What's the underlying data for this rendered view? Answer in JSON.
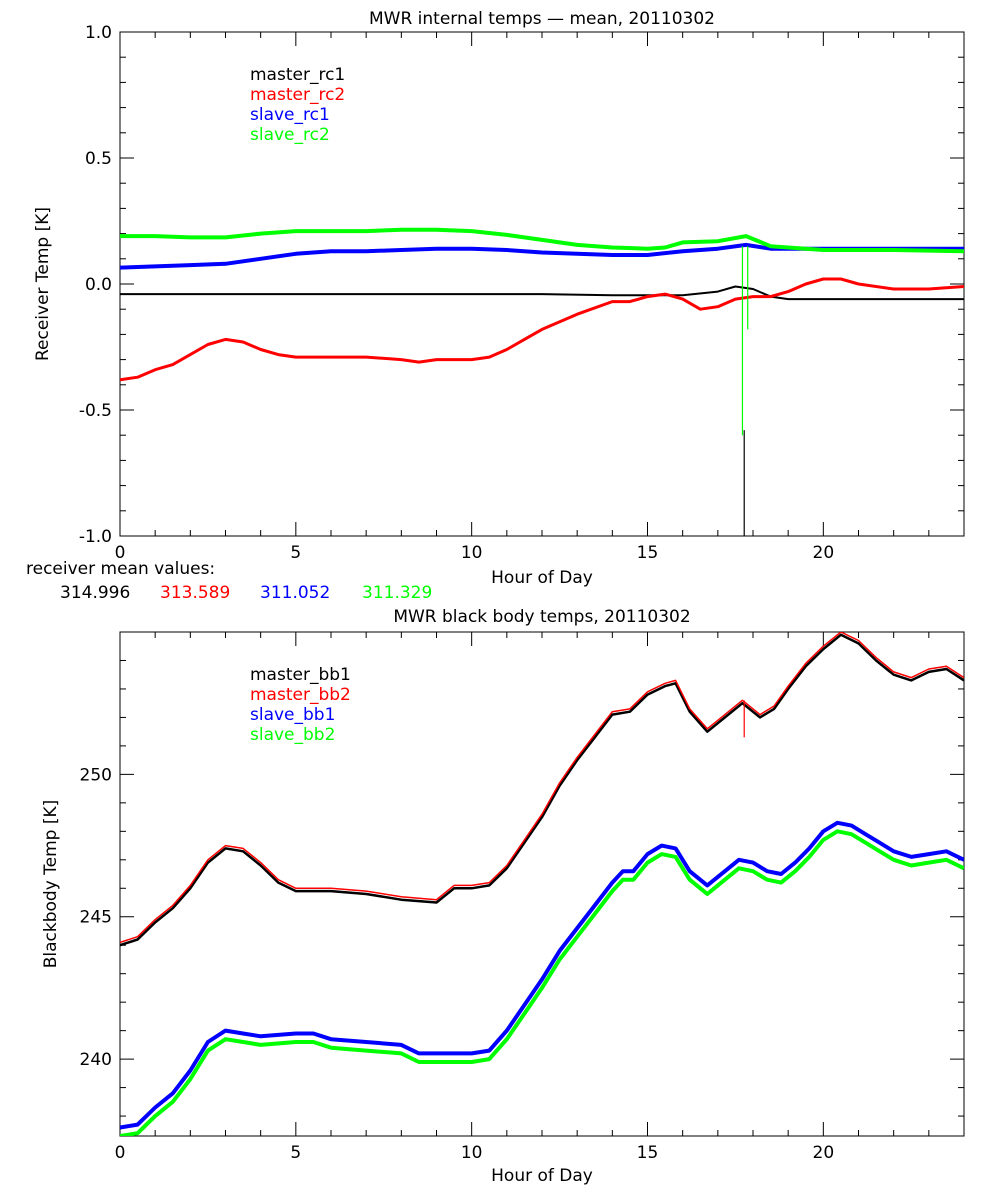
{
  "colors": {
    "black": "#000000",
    "red": "#ff0000",
    "blue": "#0000ff",
    "green": "#00ff00",
    "background": "#ffffff"
  },
  "receiver": {
    "mean_label": "receiver mean values:",
    "means": [
      {
        "text": "314.996",
        "color": "#000000"
      },
      {
        "text": "313.589",
        "color": "#ff0000"
      },
      {
        "text": "311.052",
        "color": "#0000ff"
      },
      {
        "text": "311.329",
        "color": "#00ff00"
      }
    ]
  },
  "chart_data": [
    {
      "type": "line",
      "title": "MWR internal temps — mean, 20110302",
      "xlabel": "Hour of Day",
      "ylabel": "Receiver Temp [K]",
      "xlim": [
        0,
        24
      ],
      "ylim": [
        -1.0,
        1.0
      ],
      "xticks": [
        0,
        5,
        10,
        15,
        20
      ],
      "xtick_labels": [
        "0",
        "5",
        "10",
        "15",
        "20"
      ],
      "yticks": [
        -1.0,
        -0.5,
        0.0,
        0.5,
        1.0
      ],
      "ytick_labels": [
        "-1.0",
        "-0.5",
        "0.0",
        "0.5",
        "1.0"
      ],
      "legend": [
        "master_rc1",
        "master_rc2",
        "slave_rc1",
        "slave_rc2"
      ],
      "series": [
        {
          "name": "master_rc1",
          "color": "#000000",
          "width": 2,
          "x": [
            0,
            2,
            4,
            6,
            8,
            10,
            12,
            14,
            15,
            16,
            17,
            17.5,
            18,
            18.5,
            19,
            20,
            22,
            24
          ],
          "y": [
            -0.04,
            -0.04,
            -0.04,
            -0.04,
            -0.04,
            -0.04,
            -0.04,
            -0.045,
            -0.045,
            -0.045,
            -0.03,
            -0.01,
            -0.02,
            -0.05,
            -0.06,
            -0.06,
            -0.06,
            -0.06
          ]
        },
        {
          "name": "master_rc2",
          "color": "#ff0000",
          "width": 3,
          "x": [
            0,
            0.5,
            1,
            1.5,
            2,
            2.5,
            3,
            3.5,
            4,
            4.5,
            5,
            6,
            7,
            8,
            8.5,
            9,
            10,
            10.5,
            11,
            11.5,
            12,
            13,
            14,
            14.5,
            15,
            15.5,
            16,
            16.5,
            17,
            17.5,
            18,
            18.5,
            19,
            19.5,
            20,
            20.5,
            21,
            22,
            23,
            24
          ],
          "y": [
            -0.38,
            -0.37,
            -0.34,
            -0.32,
            -0.28,
            -0.24,
            -0.22,
            -0.23,
            -0.26,
            -0.28,
            -0.29,
            -0.29,
            -0.29,
            -0.3,
            -0.31,
            -0.3,
            -0.3,
            -0.29,
            -0.26,
            -0.22,
            -0.18,
            -0.12,
            -0.07,
            -0.07,
            -0.05,
            -0.04,
            -0.06,
            -0.1,
            -0.09,
            -0.06,
            -0.05,
            -0.05,
            -0.03,
            0.0,
            0.02,
            0.02,
            0.0,
            -0.02,
            -0.02,
            -0.01
          ]
        },
        {
          "name": "slave_rc1",
          "color": "#0000ff",
          "width": 4,
          "x": [
            0,
            1,
            2,
            3,
            4,
            5,
            6,
            7,
            8,
            9,
            10,
            11,
            12,
            13,
            14,
            15,
            16,
            17,
            17.8,
            18.5,
            19,
            20,
            22,
            24
          ],
          "y": [
            0.065,
            0.07,
            0.075,
            0.08,
            0.1,
            0.12,
            0.13,
            0.13,
            0.135,
            0.14,
            0.14,
            0.135,
            0.125,
            0.12,
            0.115,
            0.115,
            0.13,
            0.14,
            0.155,
            0.14,
            0.14,
            0.14,
            0.14,
            0.14
          ]
        },
        {
          "name": "slave_rc2",
          "color": "#00ff00",
          "width": 4,
          "x": [
            0,
            1,
            2,
            3,
            4,
            5,
            6,
            7,
            8,
            9,
            10,
            11,
            12,
            13,
            14,
            15,
            15.5,
            16,
            17,
            17.8,
            18.5,
            19,
            20,
            21,
            22,
            24
          ],
          "y": [
            0.19,
            0.19,
            0.185,
            0.185,
            0.2,
            0.21,
            0.21,
            0.21,
            0.215,
            0.215,
            0.21,
            0.195,
            0.175,
            0.155,
            0.145,
            0.14,
            0.145,
            0.165,
            0.17,
            0.19,
            0.15,
            0.145,
            0.135,
            0.135,
            0.135,
            0.13
          ]
        }
      ],
      "spikes": [
        {
          "series": "slave_rc2",
          "x": 17.7,
          "y_from": 0.15,
          "y_to": -0.6,
          "color": "#00ff00"
        },
        {
          "series": "slave_rc2",
          "x": 17.85,
          "y_from": 0.15,
          "y_to": -0.18,
          "color": "#00ff00"
        },
        {
          "series": "master_rc1",
          "x": 17.75,
          "y_from": -0.58,
          "y_to": -1.0,
          "color": "#000000"
        }
      ]
    },
    {
      "type": "line",
      "title": "MWR black body temps, 20110302",
      "xlabel": "Hour of Day",
      "ylabel": "Blackbody Temp [K]",
      "xlim": [
        0,
        24
      ],
      "ylim": [
        237.3,
        255.0
      ],
      "xticks": [
        0,
        5,
        10,
        15,
        20
      ],
      "xtick_labels": [
        "0",
        "5",
        "10",
        "15",
        "20"
      ],
      "yticks": [
        240,
        245,
        250
      ],
      "ytick_labels": [
        "240",
        "245",
        "250"
      ],
      "legend": [
        "master_bb1",
        "master_bb2",
        "slave_bb1",
        "slave_bb2"
      ],
      "series": [
        {
          "name": "master_bb1",
          "color": "#000000",
          "width": 2.5,
          "x": [
            0,
            0.5,
            1,
            1.5,
            2,
            2.5,
            3,
            3.5,
            4,
            4.5,
            5,
            6,
            7,
            8,
            9,
            9.5,
            10,
            10.5,
            11,
            11.5,
            12,
            12.5,
            13,
            13.5,
            14,
            14.5,
            15,
            15.5,
            15.8,
            16.2,
            16.7,
            17.2,
            17.7,
            18.2,
            18.6,
            19,
            19.5,
            20,
            20.5,
            21,
            21.5,
            22,
            22.5,
            23,
            23.5,
            24
          ],
          "y": [
            244.0,
            244.2,
            244.8,
            245.3,
            246.0,
            246.9,
            247.4,
            247.3,
            246.8,
            246.2,
            245.9,
            245.9,
            245.8,
            245.6,
            245.5,
            246.0,
            246.0,
            246.1,
            246.7,
            247.6,
            248.5,
            249.6,
            250.5,
            251.3,
            252.1,
            252.2,
            252.8,
            253.1,
            253.2,
            252.2,
            251.5,
            252.0,
            252.5,
            252.0,
            252.3,
            253.0,
            253.8,
            254.4,
            254.9,
            254.6,
            254.0,
            253.5,
            253.3,
            253.6,
            253.7,
            253.3
          ]
        },
        {
          "name": "master_bb2",
          "color": "#ff0000",
          "width": 1.5,
          "x": [
            0,
            0.5,
            1,
            1.5,
            2,
            2.5,
            3,
            3.5,
            4,
            4.5,
            5,
            6,
            7,
            8,
            9,
            9.5,
            10,
            10.5,
            11,
            11.5,
            12,
            12.5,
            13,
            13.5,
            14,
            14.5,
            15,
            15.5,
            15.8,
            16.2,
            16.7,
            17.2,
            17.7,
            18.2,
            18.6,
            19,
            19.5,
            20,
            20.5,
            21,
            21.5,
            22,
            22.5,
            23,
            23.5,
            24
          ],
          "y": [
            244.1,
            244.3,
            244.9,
            245.4,
            246.1,
            247.0,
            247.5,
            247.4,
            246.9,
            246.3,
            246.0,
            246.0,
            245.9,
            245.7,
            245.6,
            246.1,
            246.1,
            246.2,
            246.8,
            247.7,
            248.6,
            249.7,
            250.6,
            251.4,
            252.2,
            252.3,
            252.9,
            253.2,
            253.3,
            252.3,
            251.6,
            252.1,
            252.6,
            252.1,
            252.4,
            253.1,
            253.9,
            254.5,
            255.0,
            254.7,
            254.1,
            253.6,
            253.4,
            253.7,
            253.8,
            253.4
          ]
        },
        {
          "name": "slave_bb1",
          "color": "#0000ff",
          "width": 4,
          "x": [
            0,
            0.5,
            1,
            1.5,
            2,
            2.5,
            3,
            3.5,
            4,
            5,
            5.5,
            6,
            7,
            8,
            8.5,
            9,
            10,
            10.5,
            11,
            11.5,
            12,
            12.5,
            13,
            13.5,
            14,
            14.3,
            14.6,
            15,
            15.4,
            15.8,
            16.2,
            16.7,
            17.2,
            17.6,
            18,
            18.4,
            18.8,
            19.2,
            19.6,
            20,
            20.4,
            20.8,
            21.2,
            21.6,
            22,
            22.5,
            23,
            23.5,
            24
          ],
          "y": [
            237.6,
            237.7,
            238.3,
            238.8,
            239.6,
            240.6,
            241.0,
            240.9,
            240.8,
            240.9,
            240.9,
            240.7,
            240.6,
            240.5,
            240.2,
            240.2,
            240.2,
            240.3,
            241.0,
            241.9,
            242.8,
            243.8,
            244.6,
            245.4,
            246.2,
            246.6,
            246.6,
            247.2,
            247.5,
            247.4,
            246.6,
            246.1,
            246.6,
            247.0,
            246.9,
            246.6,
            246.5,
            246.9,
            247.4,
            248.0,
            248.3,
            248.2,
            247.9,
            247.6,
            247.3,
            247.1,
            247.2,
            247.3,
            247.0
          ]
        },
        {
          "name": "slave_bb2",
          "color": "#00ff00",
          "width": 4,
          "x": [
            0,
            0.5,
            1,
            1.5,
            2,
            2.5,
            3,
            3.5,
            4,
            5,
            5.5,
            6,
            7,
            8,
            8.5,
            9,
            10,
            10.5,
            11,
            11.5,
            12,
            12.5,
            13,
            13.5,
            14,
            14.3,
            14.6,
            15,
            15.4,
            15.8,
            16.2,
            16.7,
            17.2,
            17.6,
            18,
            18.4,
            18.8,
            19.2,
            19.6,
            20,
            20.4,
            20.8,
            21.2,
            21.6,
            22,
            22.5,
            23,
            23.5,
            24
          ],
          "y": [
            237.3,
            237.4,
            238.0,
            238.5,
            239.3,
            240.3,
            240.7,
            240.6,
            240.5,
            240.6,
            240.6,
            240.4,
            240.3,
            240.2,
            239.9,
            239.9,
            239.9,
            240.0,
            240.7,
            241.6,
            242.5,
            243.5,
            244.3,
            245.1,
            245.9,
            246.3,
            246.3,
            246.9,
            247.2,
            247.1,
            246.3,
            245.8,
            246.3,
            246.7,
            246.6,
            246.3,
            246.2,
            246.6,
            247.1,
            247.7,
            248.0,
            247.9,
            247.6,
            247.3,
            247.0,
            246.8,
            246.9,
            247.0,
            246.7
          ]
        }
      ],
      "spikes": [
        {
          "series": "master_bb2",
          "x": 17.75,
          "y_from": 252.6,
          "y_to": 251.3,
          "color": "#ff0000"
        }
      ]
    }
  ]
}
